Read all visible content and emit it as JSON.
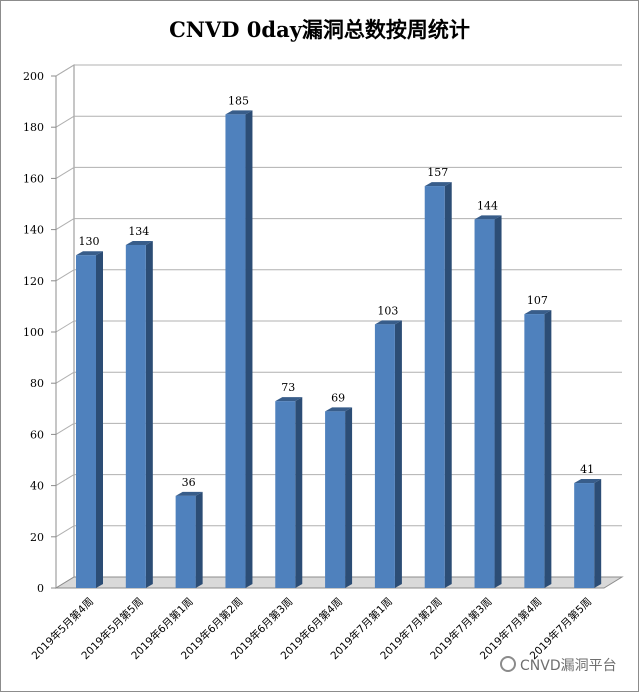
{
  "chart_data": {
    "type": "bar",
    "title": "CNVD 0day漏洞总数按周统计",
    "categories": [
      "2019年5月第4周",
      "2019年5月第5周",
      "2019年6月第1周",
      "2019年6月第2周",
      "2019年6月第3周",
      "2019年6月第4周",
      "2019年7月第1周",
      "2019年7月第2周",
      "2019年7月第3周",
      "2019年7月第4周",
      "2019年7月第5周"
    ],
    "values": [
      130,
      134,
      36,
      185,
      73,
      69,
      103,
      157,
      144,
      107,
      41
    ],
    "ylim": [
      0,
      200
    ],
    "yticks": [
      0,
      20,
      40,
      60,
      80,
      100,
      120,
      140,
      160,
      180,
      200
    ],
    "grid": true,
    "legend": "none",
    "colors": {
      "bar_front": "#4f81bd",
      "bar_side": "#2c4d75",
      "bar_top": "#385d8a",
      "grid": "#b0b0b0",
      "floor": "#d9d9d9"
    }
  },
  "watermark": "CNVD漏洞平台"
}
